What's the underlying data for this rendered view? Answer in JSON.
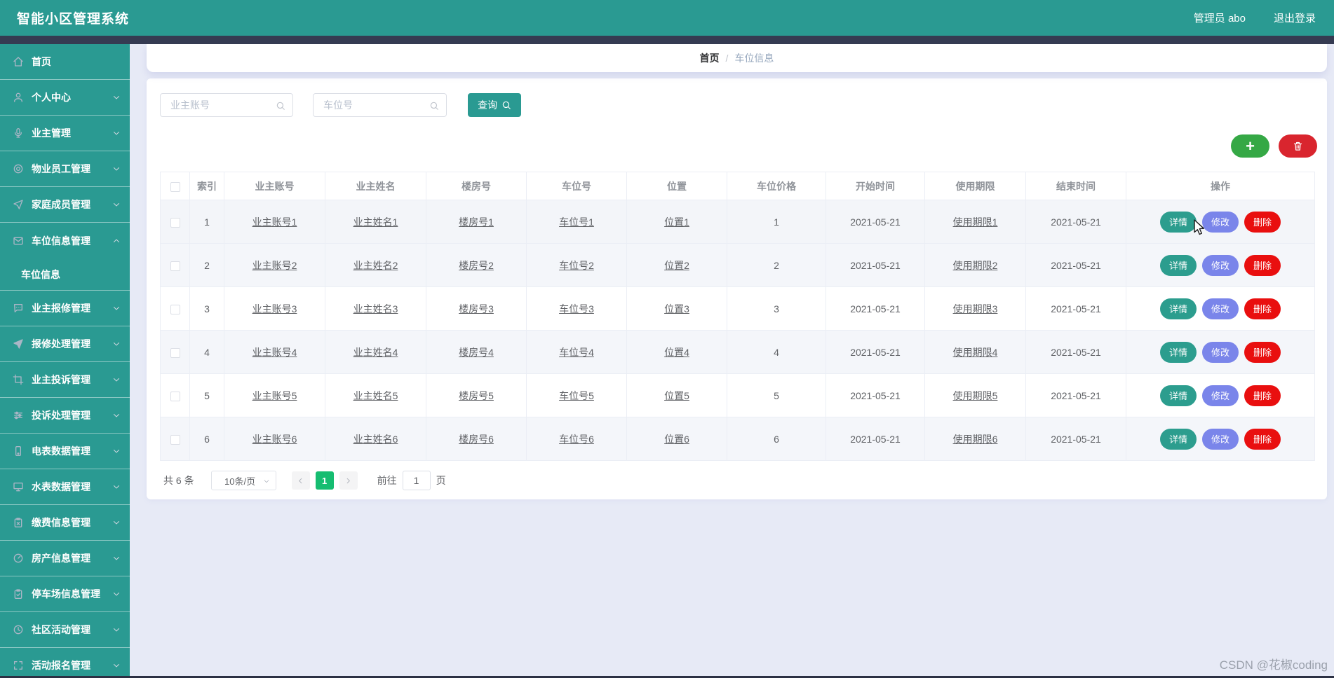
{
  "header": {
    "title": "智能小区管理系统",
    "admin": "管理员 abo",
    "logout": "退出登录"
  },
  "breadcrumb": {
    "home": "首页",
    "separator": "/",
    "current": "车位信息"
  },
  "sidebar": {
    "items": [
      {
        "name": "home",
        "label": "首页",
        "icon": "home-icon",
        "chevron": null
      },
      {
        "name": "personal-center",
        "label": "个人中心",
        "icon": "user-icon",
        "chevron": "down"
      },
      {
        "name": "owner-management",
        "label": "业主管理",
        "icon": "mic-icon",
        "chevron": "down"
      },
      {
        "name": "property-staff-management",
        "label": "物业员工管理",
        "icon": "target-icon",
        "chevron": "down"
      },
      {
        "name": "family-member-management",
        "label": "家庭成员管理",
        "icon": "send-icon",
        "chevron": "down"
      },
      {
        "name": "parking-spot-info-management",
        "label": "车位信息管理",
        "icon": "mail-icon",
        "chevron": "up",
        "expanded": true
      },
      {
        "name": "parking-spot-info",
        "label": "车位信息",
        "type": "subitem",
        "active": true
      },
      {
        "name": "owner-repair-management",
        "label": "业主报修管理",
        "icon": "chat-icon",
        "chevron": "down"
      },
      {
        "name": "repair-handling-management",
        "label": "报修处理管理",
        "icon": "send-filled-icon",
        "chevron": "down"
      },
      {
        "name": "owner-complaint-management",
        "label": "业主投诉管理",
        "icon": "crop-icon",
        "chevron": "down"
      },
      {
        "name": "complaint-handling-management",
        "label": "投诉处理管理",
        "icon": "sliders-icon",
        "chevron": "down"
      },
      {
        "name": "electric-meter-data-management",
        "label": "电表数据管理",
        "icon": "phone-icon",
        "chevron": "down"
      },
      {
        "name": "water-meter-data-management",
        "label": "水表数据管理",
        "icon": "monitor-icon",
        "chevron": "down"
      },
      {
        "name": "payment-info-management",
        "label": "缴费信息管理",
        "icon": "clipboard-x-icon",
        "chevron": "down"
      },
      {
        "name": "property-info-management",
        "label": "房产信息管理",
        "icon": "gauge-icon",
        "chevron": "down"
      },
      {
        "name": "parking-lot-info-management",
        "label": "停车场信息管理",
        "icon": "clipboard-check-icon",
        "chevron": "down"
      },
      {
        "name": "community-activity-management",
        "label": "社区活动管理",
        "icon": "clock-icon",
        "chevron": "down"
      },
      {
        "name": "activity-registration-management",
        "label": "活动报名管理",
        "icon": "corners-icon",
        "chevron": "down"
      }
    ]
  },
  "search": {
    "owner_account_placeholder": "业主账号",
    "spot_number_placeholder": "车位号",
    "query_label": "查询"
  },
  "toolbar": {
    "add_label": "+"
  },
  "table": {
    "columns": [
      "索引",
      "业主账号",
      "业主姓名",
      "楼房号",
      "车位号",
      "位置",
      "车位价格",
      "开始时间",
      "使用期限",
      "结束时间",
      "操作"
    ],
    "rows": [
      {
        "index": "1",
        "owner_account": "业主账号1",
        "owner_name": "业主姓名1",
        "building_no": "楼房号1",
        "spot_no": "车位号1",
        "location": "位置1",
        "price": "1",
        "start_date": "2021-05-21",
        "use_period": "使用期限1",
        "end_date": "2021-05-21"
      },
      {
        "index": "2",
        "owner_account": "业主账号2",
        "owner_name": "业主姓名2",
        "building_no": "楼房号2",
        "spot_no": "车位号2",
        "location": "位置2",
        "price": "2",
        "start_date": "2021-05-21",
        "use_period": "使用期限2",
        "end_date": "2021-05-21"
      },
      {
        "index": "3",
        "owner_account": "业主账号3",
        "owner_name": "业主姓名3",
        "building_no": "楼房号3",
        "spot_no": "车位号3",
        "location": "位置3",
        "price": "3",
        "start_date": "2021-05-21",
        "use_period": "使用期限3",
        "end_date": "2021-05-21"
      },
      {
        "index": "4",
        "owner_account": "业主账号4",
        "owner_name": "业主姓名4",
        "building_no": "楼房号4",
        "spot_no": "车位号4",
        "location": "位置4",
        "price": "4",
        "start_date": "2021-05-21",
        "use_period": "使用期限4",
        "end_date": "2021-05-21"
      },
      {
        "index": "5",
        "owner_account": "业主账号5",
        "owner_name": "业主姓名5",
        "building_no": "楼房号5",
        "spot_no": "车位号5",
        "location": "位置5",
        "price": "5",
        "start_date": "2021-05-21",
        "use_period": "使用期限5",
        "end_date": "2021-05-21"
      },
      {
        "index": "6",
        "owner_account": "业主账号6",
        "owner_name": "业主姓名6",
        "building_no": "楼房号6",
        "spot_no": "车位号6",
        "location": "位置6",
        "price": "6",
        "start_date": "2021-05-21",
        "use_period": "使用期限6",
        "end_date": "2021-05-21"
      }
    ],
    "actions": {
      "detail": "详情",
      "edit": "修改",
      "delete": "删除"
    }
  },
  "pagination": {
    "total_text": "共 6 条",
    "page_size_text": "10条/页",
    "current_page": "1",
    "goto_prefix": "前往",
    "goto_value": "1",
    "goto_suffix": "页"
  },
  "watermark": "CSDN @花椒coding",
  "colors": {
    "primary_teal": "#2a9a92",
    "header_strip_navy": "#353b52",
    "page_background": "#e7eaf6",
    "add_button_green": "#35a845",
    "toolbar_delete_red": "#d9252e",
    "detail_button_teal": "#2c9d8e",
    "edit_button_purple": "#7a85ea",
    "delete_button_red": "#e90f0f",
    "active_page_green": "#16bd71"
  }
}
